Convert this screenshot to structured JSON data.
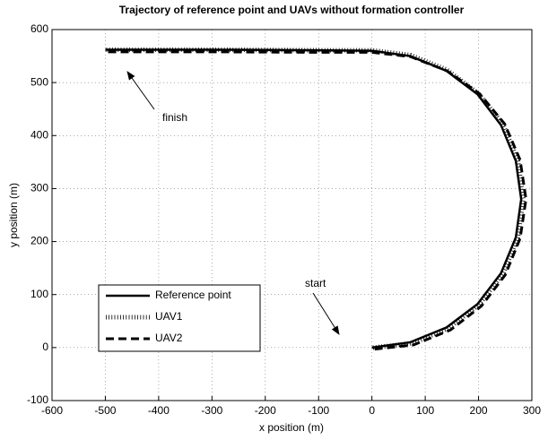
{
  "chart_data": {
    "type": "line",
    "title": "Trajectory of reference point and UAVs without formation controller",
    "xlabel": "x position (m)",
    "ylabel": "y position (m)",
    "xlim": [
      -600,
      300
    ],
    "ylim": [
      -100,
      600
    ],
    "xticks": [
      -600,
      -500,
      -400,
      -300,
      -200,
      -100,
      0,
      100,
      200,
      300
    ],
    "yticks": [
      -100,
      0,
      100,
      200,
      300,
      400,
      500,
      600
    ],
    "grid": true,
    "legend": "lower left",
    "annotations": [
      "finish",
      "start"
    ],
    "series": [
      {
        "name": "Reference point",
        "color": "#000000",
        "style": "solid",
        "x": [
          0,
          72,
          140,
          198,
          242,
          270,
          280,
          270,
          242,
          198,
          140,
          72,
          0,
          -100,
          -300,
          -500
        ],
        "values": [
          0,
          10,
          38,
          82,
          140,
          208,
          280,
          352,
          420,
          478,
          522,
          550,
          560,
          561,
          562,
          562
        ]
      },
      {
        "name": "UAV1",
        "color": "#000000",
        "style": "dotted",
        "x": [
          2,
          76,
          143,
          201,
          246,
          274,
          284,
          274,
          246,
          200,
          141,
          72,
          0,
          -100,
          -300,
          -500
        ],
        "values": [
          0,
          8,
          36,
          81,
          139,
          207,
          280,
          353,
          421,
          479,
          524,
          552,
          561,
          561,
          562,
          562
        ]
      },
      {
        "name": "UAV2",
        "color": "#000000",
        "style": "dashed",
        "x": [
          5,
          78,
          147,
          205,
          250,
          278,
          289,
          278,
          249,
          202,
          141,
          72,
          0,
          -100,
          -300,
          -500
        ],
        "values": [
          -3,
          5,
          33,
          78,
          137,
          206,
          280,
          354,
          422,
          479,
          522,
          549,
          557,
          557,
          558,
          558
        ]
      }
    ]
  }
}
